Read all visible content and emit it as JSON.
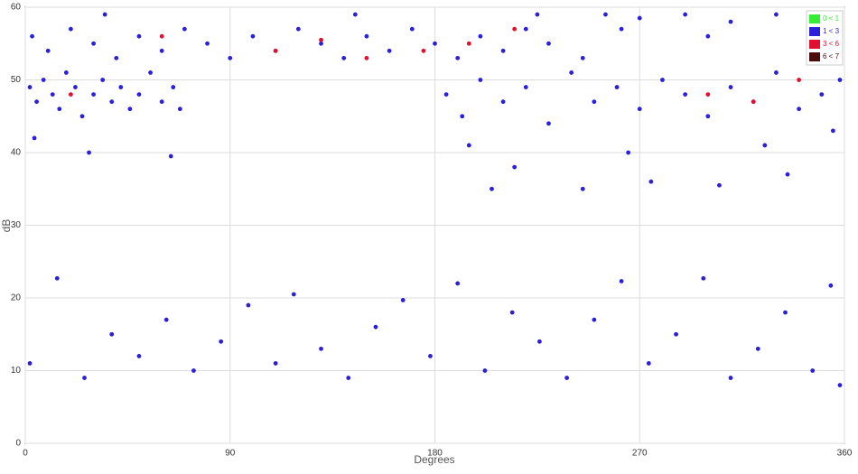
{
  "chart_data": {
    "type": "scatter",
    "xlabel": "Degrees",
    "ylabel": "dB",
    "xlim": [
      0,
      360
    ],
    "ylim": [
      0,
      60
    ],
    "xticks": [
      0,
      90,
      180,
      270,
      360
    ],
    "yticks": [
      0,
      10,
      20,
      30,
      40,
      50,
      60
    ],
    "grid": true,
    "legend": "upper right",
    "series": [
      {
        "name": "0 < 1",
        "color": "#33ee33",
        "x": [],
        "values": []
      },
      {
        "name": "1 < 3",
        "color": "#2b1fd8",
        "x": [
          2,
          5,
          8,
          12,
          15,
          18,
          22,
          25,
          30,
          34,
          38,
          42,
          46,
          50,
          55,
          60,
          65,
          68,
          4,
          28,
          64,
          3,
          10,
          20,
          30,
          40,
          50,
          60,
          70,
          80,
          90,
          100,
          110,
          120,
          130,
          140,
          150,
          160,
          170,
          180,
          190,
          200,
          210,
          220,
          230,
          245,
          35,
          145,
          225,
          185,
          192,
          200,
          210,
          220,
          230,
          240,
          250,
          260,
          270,
          280,
          290,
          300,
          310,
          320,
          330,
          340,
          350,
          358,
          205,
          215,
          245,
          275,
          305,
          335,
          195,
          265,
          325,
          355,
          255,
          270,
          290,
          310,
          330,
          345,
          262,
          300,
          2,
          14,
          26,
          38,
          50,
          62,
          74,
          86,
          98,
          110,
          118,
          130,
          142,
          154,
          166,
          178,
          190,
          202,
          214,
          226,
          238,
          250,
          262,
          274,
          286,
          298,
          310,
          322,
          334,
          346,
          354,
          358
        ],
        "values": [
          49,
          47,
          50,
          48,
          46,
          51,
          49,
          45,
          48,
          50,
          47,
          49,
          46,
          48,
          51,
          47,
          49,
          46,
          42,
          40,
          39.5,
          56,
          54,
          57,
          55,
          53,
          56,
          54,
          57,
          55,
          53,
          56,
          54,
          57,
          55,
          53,
          56,
          54,
          57,
          55,
          53,
          56,
          54,
          57,
          55,
          53,
          59,
          59,
          59,
          48,
          45,
          50,
          47,
          49,
          44,
          51,
          47,
          49,
          46,
          50,
          48,
          45,
          49,
          47,
          51,
          46,
          48,
          50,
          35,
          38,
          35,
          36,
          35.5,
          37,
          41,
          40,
          41,
          43,
          59,
          58.5,
          59,
          58,
          59,
          58.5,
          57,
          56,
          11,
          22.7,
          9,
          15,
          12,
          17,
          10,
          14,
          19,
          11,
          20.5,
          13,
          9,
          16,
          19.7,
          12,
          22,
          10,
          18,
          14,
          9,
          17,
          22.3,
          11,
          15,
          22.7,
          9,
          13,
          18,
          10,
          21.7,
          8
        ]
      },
      {
        "name": "3 < 6",
        "color": "#e01030",
        "x": [
          60,
          110,
          130,
          150,
          175,
          215,
          300,
          320,
          340,
          20,
          195
        ],
        "values": [
          56,
          54,
          55.5,
          53,
          54,
          57,
          48,
          47,
          50,
          48,
          55
        ]
      },
      {
        "name": "6 < 7",
        "color": "#4a0d0d",
        "x": [],
        "values": []
      }
    ]
  }
}
